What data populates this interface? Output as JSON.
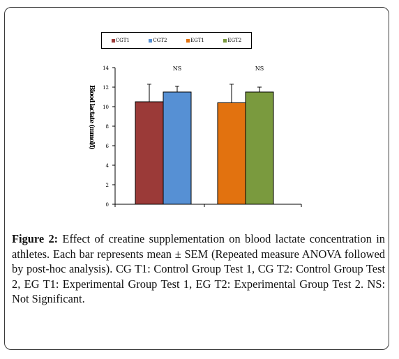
{
  "legend": [
    {
      "label": "CGT1",
      "color": "#9B3A38"
    },
    {
      "label": "CGT2",
      "color": "#5690D4"
    },
    {
      "label": "EGT1",
      "color": "#E2720F"
    },
    {
      "label": "EGT2",
      "color": "#7A9A3E"
    }
  ],
  "chart_data": {
    "type": "bar",
    "ylabel": "Blood lactate (mmol/l)",
    "ylim": [
      0,
      14
    ],
    "yticks": [
      "0",
      "2",
      "4",
      "6",
      "8",
      "10",
      "12",
      "14"
    ],
    "groups": [
      {
        "annotation": "NS",
        "bars": [
          {
            "series": "CGT1",
            "value": 10.5,
            "error": 1.8,
            "color": "#9B3A38"
          },
          {
            "series": "CGT2",
            "value": 11.5,
            "error": 0.6,
            "color": "#5690D4"
          }
        ]
      },
      {
        "annotation": "NS",
        "bars": [
          {
            "series": "EGT1",
            "value": 10.4,
            "error": 1.9,
            "color": "#E2720F"
          },
          {
            "series": "EGT2",
            "value": 11.5,
            "error": 0.5,
            "color": "#7A9A3E"
          }
        ]
      }
    ],
    "grid": false,
    "legend_position": "top"
  },
  "caption": {
    "label": "Figure 2:",
    "text": " Effect of creatine supplementation on blood lactate concentration in athletes. Each bar represents mean ± SEM (Repeated measure ANOVA followed by post-hoc analysis). CG T1: Control Group Test 1, CG T2: Control Group Test 2, EG T1: Experimental Group Test 1, EG T2: Experimental Group Test 2. NS: Not Significant."
  }
}
